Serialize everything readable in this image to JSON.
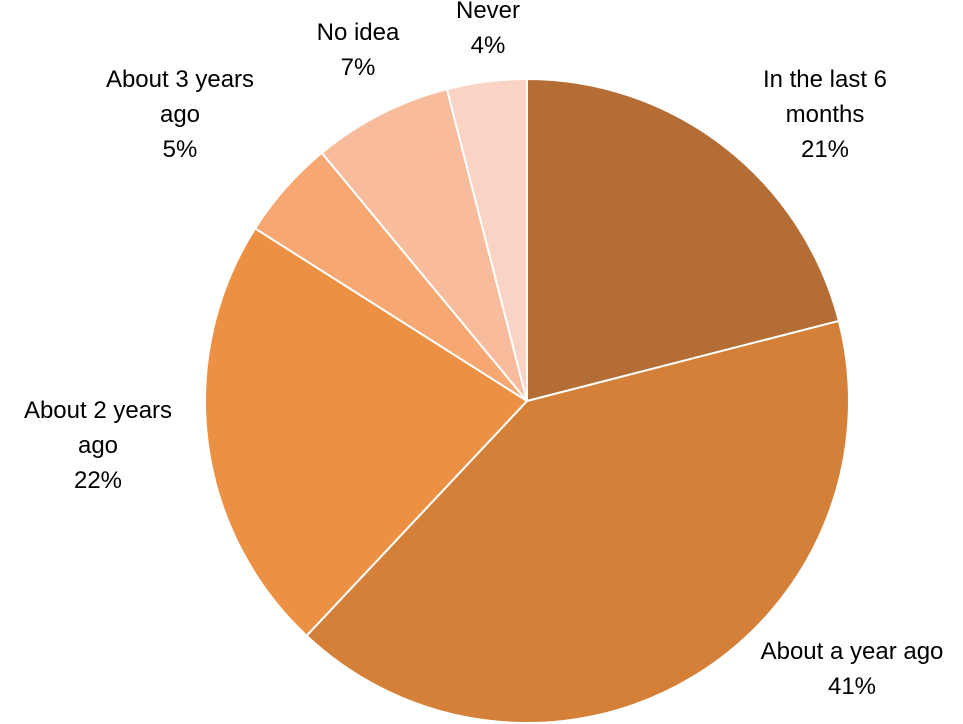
{
  "chart_data": {
    "type": "pie",
    "title": "",
    "start": "12 o'clock",
    "direction": "clockwise",
    "slices": [
      {
        "label": "In the last 6 months",
        "label_lines": [
          "In the last 6",
          "months"
        ],
        "value": 21,
        "value_label": "21%",
        "color": "#B46E35"
      },
      {
        "label": "About a year ago",
        "label_lines": [
          "About a year ago"
        ],
        "value": 41,
        "value_label": "41%",
        "color": "#D48039"
      },
      {
        "label": "About 2 years ago",
        "label_lines": [
          "About 2 years",
          "ago"
        ],
        "value": 22,
        "value_label": "22%",
        "color": "#EC9044"
      },
      {
        "label": "About 3 years ago",
        "label_lines": [
          "About 3 years",
          "ago"
        ],
        "value": 5,
        "value_label": "5%",
        "color": "#F6A772"
      },
      {
        "label": "No idea",
        "label_lines": [
          "No idea"
        ],
        "value": 7,
        "value_label": "7%",
        "color": "#F8BC9C"
      },
      {
        "label": "Never",
        "label_lines": [
          "Never"
        ],
        "value": 4,
        "value_label": "4%",
        "color": "#F9D3C3"
      }
    ]
  }
}
